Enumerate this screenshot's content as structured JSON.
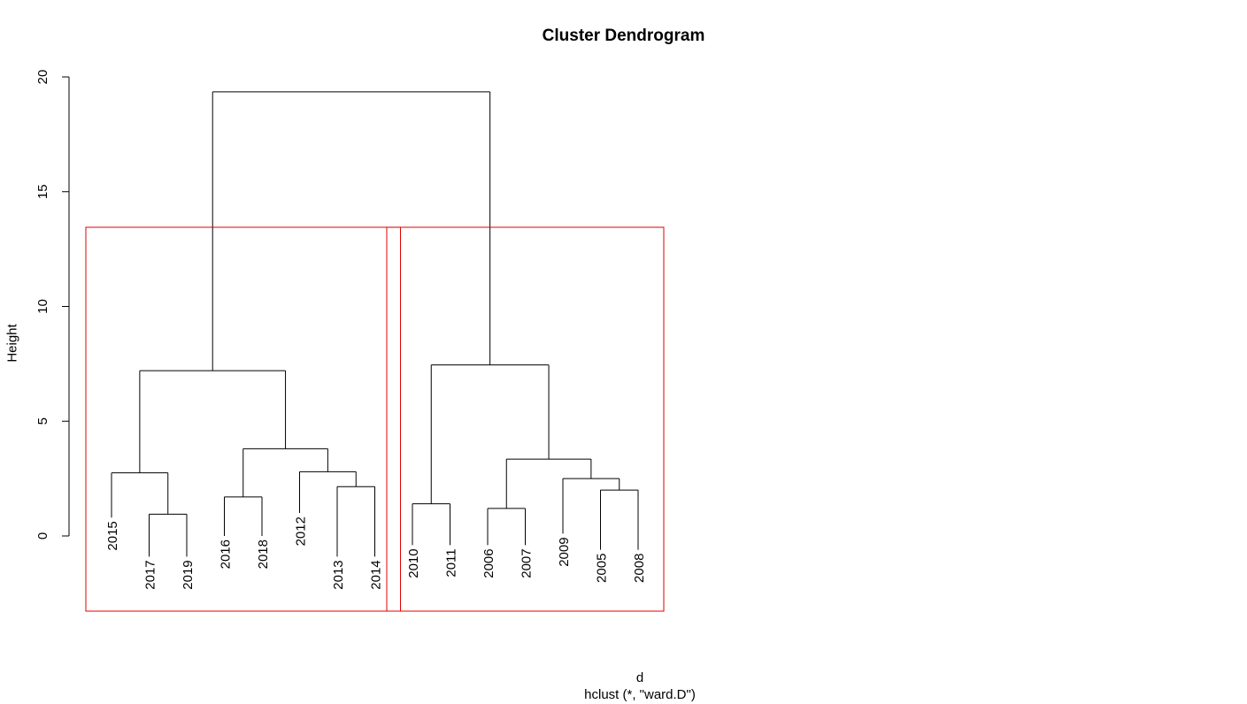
{
  "chart_data": {
    "type": "dendrogram",
    "title": "Cluster Dendrogram",
    "xlabel": "d",
    "xsub": "hclust (*, \"ward.D\")",
    "ylabel": "Height",
    "ylim": [
      0,
      20
    ],
    "yticks": [
      0,
      5,
      10,
      15,
      20
    ],
    "leaves": [
      "2015",
      "2017",
      "2019",
      "2016",
      "2018",
      "2012",
      "2013",
      "2014",
      "2010",
      "2011",
      "2006",
      "2007",
      "2009",
      "2005",
      "2008"
    ],
    "leaf_heights": [
      0.8,
      -0.9,
      -0.9,
      0.0,
      0.0,
      1.0,
      -0.9,
      -0.9,
      -0.4,
      -0.4,
      -0.4,
      -0.4,
      0.1,
      -0.6,
      -0.6
    ],
    "merges": [
      {
        "left": "2017",
        "right": "2019",
        "height": 0.95
      },
      {
        "left": "2015",
        "right": 0,
        "height": 2.75
      },
      {
        "left": "2016",
        "right": "2018",
        "height": 1.7
      },
      {
        "left": "2013",
        "right": "2014",
        "height": 2.15
      },
      {
        "left": "2012",
        "right": 3,
        "height": 2.8
      },
      {
        "left": 2,
        "right": 4,
        "height": 3.8
      },
      {
        "left": 1,
        "right": 5,
        "height": 7.2
      },
      {
        "left": "2010",
        "right": "2011",
        "height": 1.4
      },
      {
        "left": "2006",
        "right": "2007",
        "height": 1.2
      },
      {
        "left": "2005",
        "right": "2008",
        "height": 2.0
      },
      {
        "left": "2009",
        "right": 9,
        "height": 2.5
      },
      {
        "left": 8,
        "right": 10,
        "height": 3.35
      },
      {
        "left": 7,
        "right": 11,
        "height": 7.45
      },
      {
        "left": 6,
        "right": 12,
        "height": 19.35
      }
    ],
    "clusters": [
      {
        "leaves": [
          "2015",
          "2017",
          "2019",
          "2016",
          "2018",
          "2012",
          "2013",
          "2014"
        ]
      },
      {
        "leaves": [
          "2010",
          "2011",
          "2006",
          "2007",
          "2009",
          "2005",
          "2008"
        ]
      }
    ],
    "line_color": "#000000",
    "rect_color": "#df0000"
  }
}
